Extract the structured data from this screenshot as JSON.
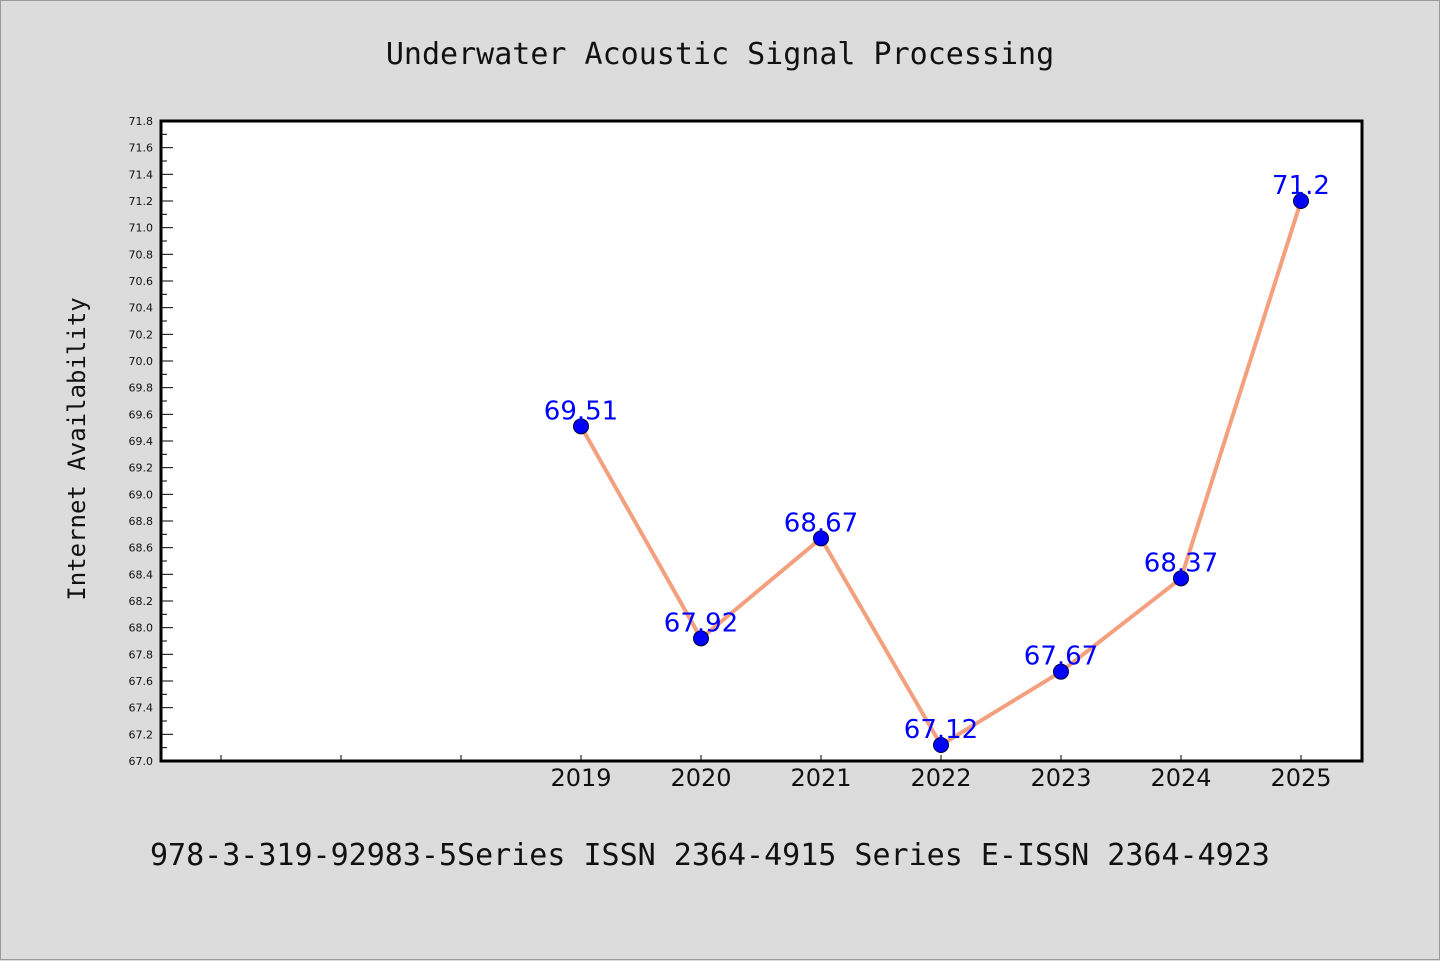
{
  "chart_data": {
    "type": "line",
    "title": "Underwater Acoustic Signal Processing",
    "ylabel": "Internet Availability",
    "xlabel": "",
    "footer": "978-3-319-92983-5Series ISSN 2364-4915 Series E-ISSN 2364-4923",
    "x": [
      "2019",
      "2020",
      "2021",
      "2022",
      "2023",
      "2024",
      "2025"
    ],
    "series": [
      {
        "values": [
          69.51,
          67.92,
          68.67,
          67.12,
          67.67,
          68.37,
          71.2
        ],
        "labels": [
          "69.51",
          "67.92",
          "68.67",
          "67.12",
          "67.67",
          "68.37",
          "71.2"
        ]
      }
    ],
    "ylim": [
      67.0,
      71.8
    ],
    "yticks": [
      "67.0",
      "67.2",
      "67.4",
      "67.6",
      "67.8",
      "68.0",
      "68.2",
      "68.4",
      "68.6",
      "68.8",
      "69.0",
      "69.2",
      "69.4",
      "69.6",
      "69.8",
      "70.0",
      "70.2",
      "70.4",
      "70.6",
      "70.8",
      "71.0",
      "71.2",
      "71.4",
      "71.6",
      "71.8"
    ],
    "grid": false,
    "line_color": "#f4a07e",
    "marker_color": "#0000ff",
    "label_color": "#0000ff",
    "plot_background": "#ffffff",
    "background": "#dcdcdc"
  }
}
